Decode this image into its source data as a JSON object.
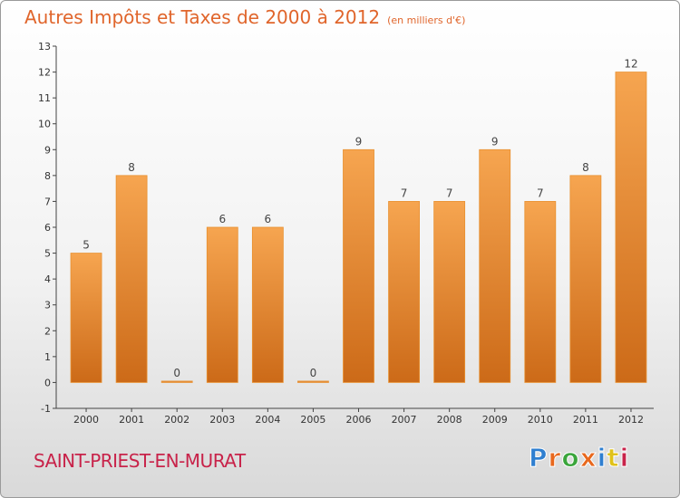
{
  "chart_data": {
    "type": "bar",
    "title": "Autres Impôts et Taxes de 2000 à 2012",
    "subtitle": "(en milliers d'€)",
    "categories": [
      "2000",
      "2001",
      "2002",
      "2003",
      "2004",
      "2005",
      "2006",
      "2007",
      "2008",
      "2009",
      "2010",
      "2011",
      "2012"
    ],
    "values": [
      5,
      8,
      0,
      6,
      6,
      0,
      9,
      7,
      7,
      9,
      7,
      8,
      12
    ],
    "ylim": [
      -1,
      13
    ],
    "yticks": [
      -1,
      0,
      1,
      2,
      3,
      4,
      5,
      6,
      7,
      8,
      9,
      10,
      11,
      12,
      13
    ],
    "grid": false,
    "bar_color_light": "#f6a550",
    "bar_color_dark": "#cc6a18"
  },
  "footer": {
    "town": "SAINT-PRIEST-EN-MURAT",
    "logo": "Proxiti",
    "logo_colors": [
      "#2f7fd0",
      "#e8681d",
      "#3aa53b",
      "#e8681d",
      "#2f7fd0",
      "#e0c21a",
      "#c8234a"
    ]
  }
}
